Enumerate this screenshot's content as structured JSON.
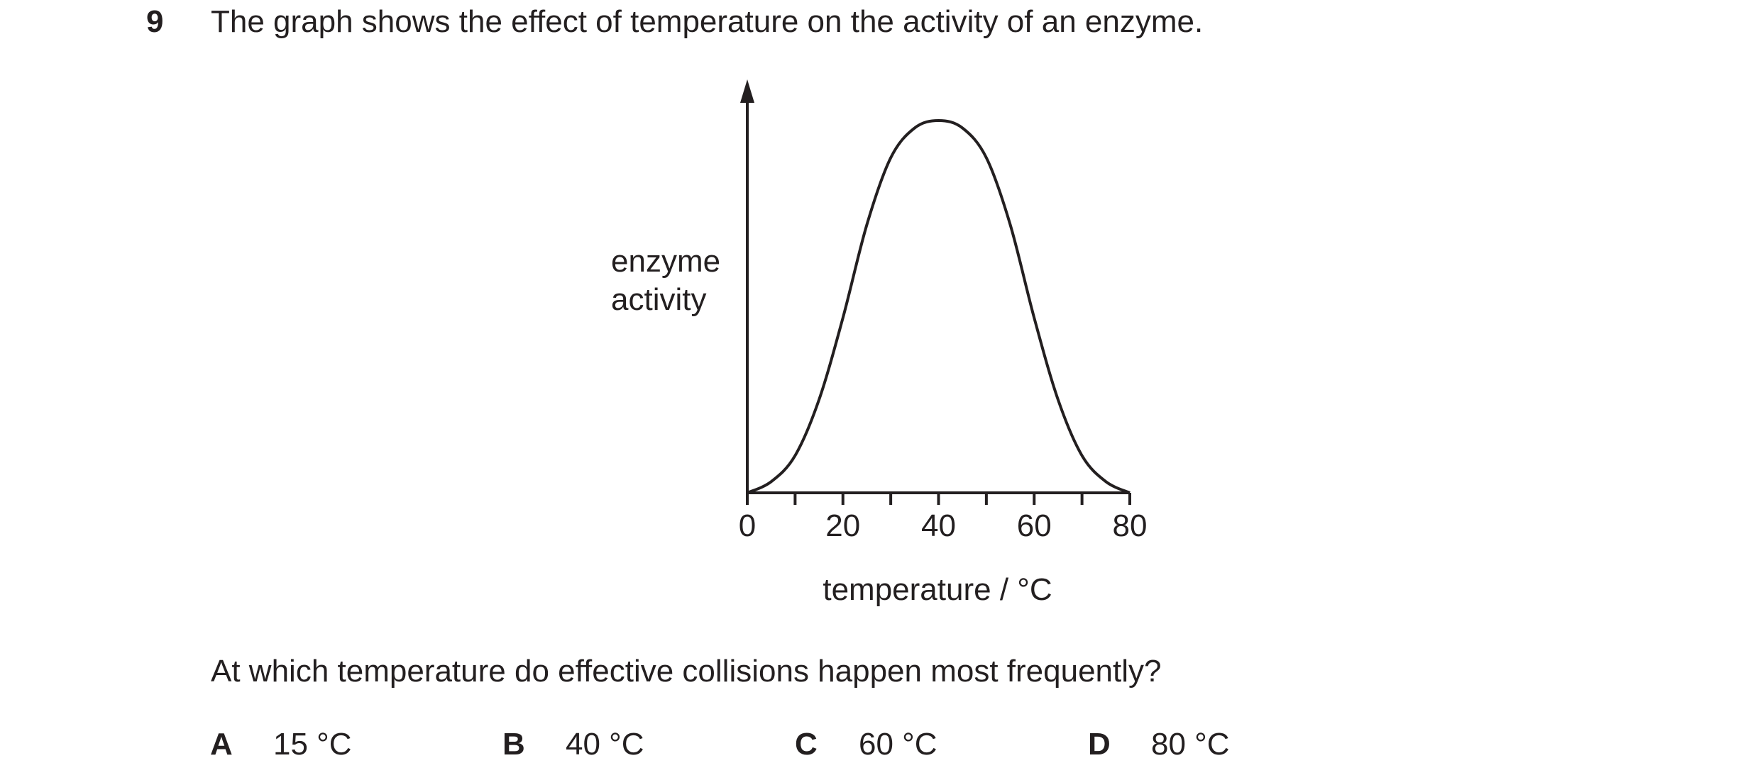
{
  "question": {
    "number": "9",
    "stem": "The graph shows the effect of temperature on the activity of an enzyme.",
    "prompt": "At which temperature do effective collisions happen most frequently?",
    "options": [
      {
        "letter": "A",
        "text": "15 °C"
      },
      {
        "letter": "B",
        "text": "40 °C"
      },
      {
        "letter": "C",
        "text": "60 °C"
      },
      {
        "letter": "D",
        "text": "80 °C"
      }
    ]
  },
  "chart_data": {
    "type": "line",
    "title": "",
    "xlabel": "temperature / °C",
    "ylabel_lines": [
      "enzyme",
      "activity"
    ],
    "xlim": [
      0,
      80
    ],
    "ylim": [
      0,
      1
    ],
    "x_tick_labels": [
      "0",
      "20",
      "40",
      "60",
      "80"
    ],
    "x_minor_ticks": [
      10,
      30,
      50,
      70
    ],
    "grid": false,
    "series": [
      {
        "x": [
          0,
          5,
          10,
          15,
          20,
          25,
          30,
          35,
          40,
          45,
          50,
          55,
          60,
          65,
          70,
          75,
          80
        ],
        "y": [
          0,
          0.03,
          0.1,
          0.25,
          0.47,
          0.72,
          0.9,
          0.98,
          1.0,
          0.98,
          0.9,
          0.72,
          0.47,
          0.25,
          0.1,
          0.03,
          0
        ]
      }
    ]
  }
}
